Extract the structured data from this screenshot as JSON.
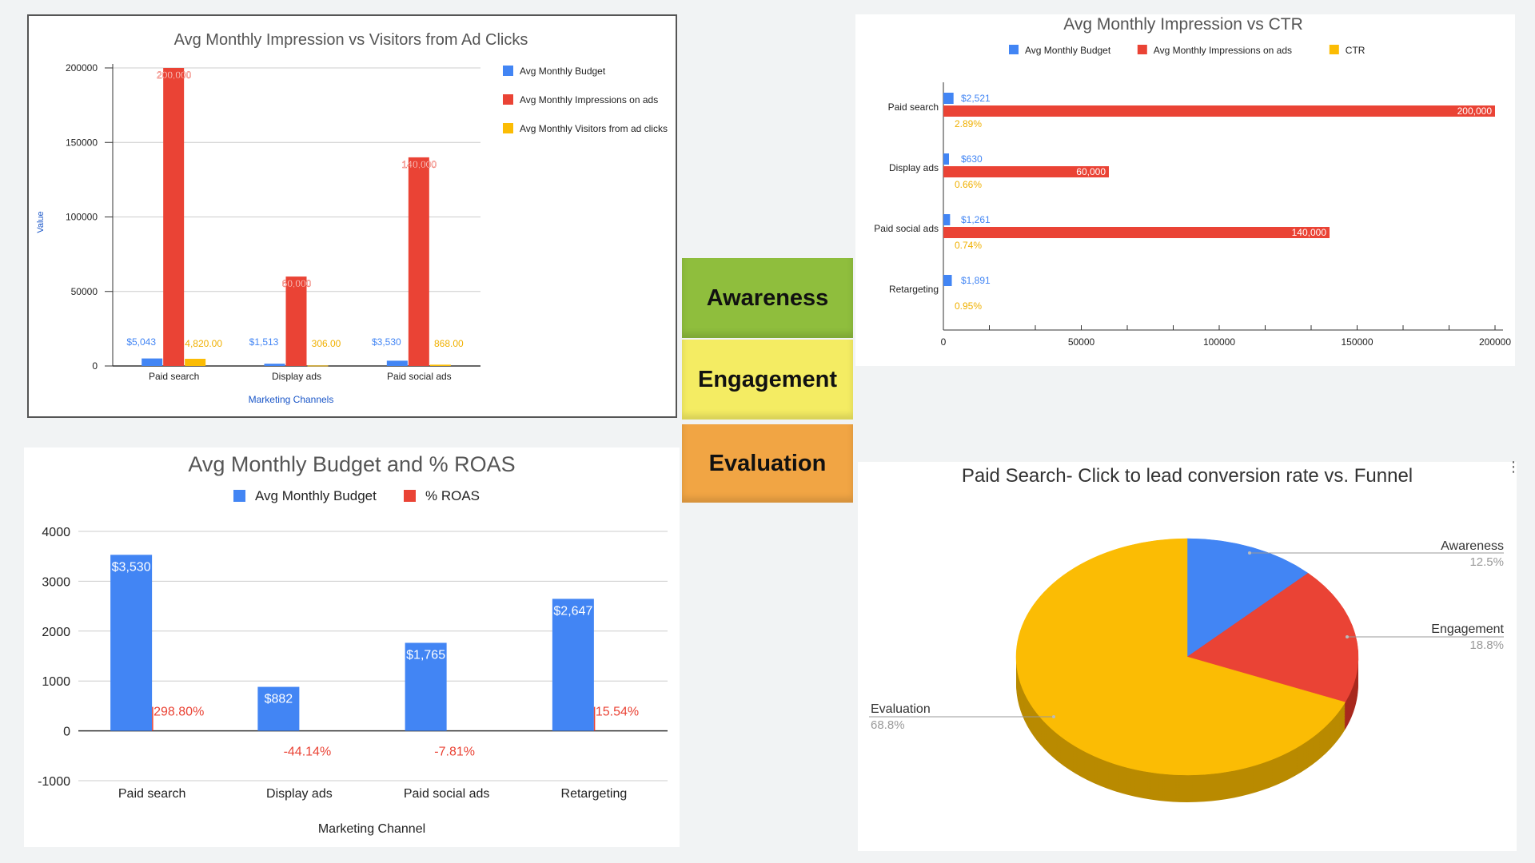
{
  "funnel": {
    "stages": [
      {
        "label": "Awareness",
        "color": "#8fbe3d"
      },
      {
        "label": "Engagement",
        "color": "#f4ec63"
      },
      {
        "label": "Evaluation",
        "color": "#f1a544"
      }
    ]
  },
  "chart_data": [
    {
      "id": "impressions-vs-visitors",
      "type": "bar",
      "title": "Avg Monthly Impression vs Visitors from  Ad Clicks",
      "xlabel": "Marketing Channels",
      "ylabel": "Value",
      "ylim": [
        0,
        200000
      ],
      "yticks": [
        "0",
        "50000",
        "100000",
        "150000",
        "200000"
      ],
      "categories": [
        "Paid search",
        "Display ads",
        "Paid social ads"
      ],
      "legend_position": "right",
      "series": [
        {
          "name": "Avg Monthly Budget",
          "color": "#4285f4",
          "values": [
            5043,
            1513,
            3530
          ],
          "labels": [
            "$5,043",
            "$1,513",
            "$3,530"
          ]
        },
        {
          "name": "Avg Monthly Impressions on ads",
          "color": "#ea4335",
          "values": [
            200000,
            60000,
            140000
          ],
          "labels": [
            "200,000",
            "60,000",
            "140,000"
          ]
        },
        {
          "name": "Avg Monthly Visitors from ad clicks",
          "color": "#fbbc04",
          "values": [
            4820,
            306,
            868
          ],
          "labels": [
            "4,820.00",
            "306.00",
            "868.00"
          ]
        }
      ]
    },
    {
      "id": "impression-vs-ctr",
      "type": "bar",
      "orientation": "horizontal",
      "title": "Avg Monthly Impression vs CTR",
      "xlim": [
        0,
        200000
      ],
      "xticks": [
        "0",
        "50000",
        "100000",
        "150000",
        "200000"
      ],
      "categories": [
        "Paid search",
        "Display ads",
        "Paid social ads",
        "Retargeting"
      ],
      "legend_position": "top",
      "series": [
        {
          "name": "Avg Monthly Budget",
          "color": "#4285f4",
          "values": [
            2521,
            630,
            1261,
            1891
          ],
          "labels": [
            "$2,521",
            "$630",
            "$1,261",
            "$1,891"
          ]
        },
        {
          "name": "Avg Monthly Impressions on ads",
          "color": "#ea4335",
          "values": [
            200000,
            60000,
            140000,
            null
          ],
          "labels": [
            "200,000",
            "60,000",
            "140,000",
            ""
          ]
        },
        {
          "name": "CTR",
          "color": "#fbbc04",
          "values": [
            2.89,
            0.66,
            0.74,
            0.95
          ],
          "labels": [
            "2.89%",
            "0.66%",
            "0.74%",
            "0.95%"
          ]
        }
      ]
    },
    {
      "id": "budget-and-roas",
      "type": "bar",
      "title": "Avg Monthly Budget and % ROAS",
      "xlabel": "Marketing Channel",
      "ylim": [
        -1000,
        4000
      ],
      "yticks": [
        "-1000",
        "0",
        "1000",
        "2000",
        "3000",
        "4000"
      ],
      "categories": [
        "Paid search",
        "Display ads",
        "Paid social ads",
        "Retargeting"
      ],
      "legend_position": "top",
      "series": [
        {
          "name": "Avg Monthly Budget",
          "color": "#4285f4",
          "values": [
            3530,
            882,
            1765,
            2647
          ],
          "labels": [
            "$3,530",
            "$882",
            "$1,765",
            "$2,647"
          ]
        },
        {
          "name": "% ROAS",
          "color": "#ea4335",
          "values": [
            298.8,
            -44.14,
            -7.81,
            15.54
          ],
          "labels": [
            "298.80%",
            "-44.14%",
            "-7.81%",
            "15.54%"
          ]
        }
      ]
    },
    {
      "id": "conversion-pie",
      "type": "pie",
      "title": "Paid Search- Click to lead conversion rate vs. Funnel",
      "legend_position": "labeled",
      "slices": [
        {
          "label": "Awareness",
          "value": 12.5,
          "display": "12.5%",
          "color": "#4285f4"
        },
        {
          "label": "Engagement",
          "value": 18.8,
          "display": "18.8%",
          "color": "#ea4335"
        },
        {
          "label": "Evaluation",
          "value": 68.8,
          "display": "68.8%",
          "color": "#fbbc04"
        }
      ]
    }
  ]
}
